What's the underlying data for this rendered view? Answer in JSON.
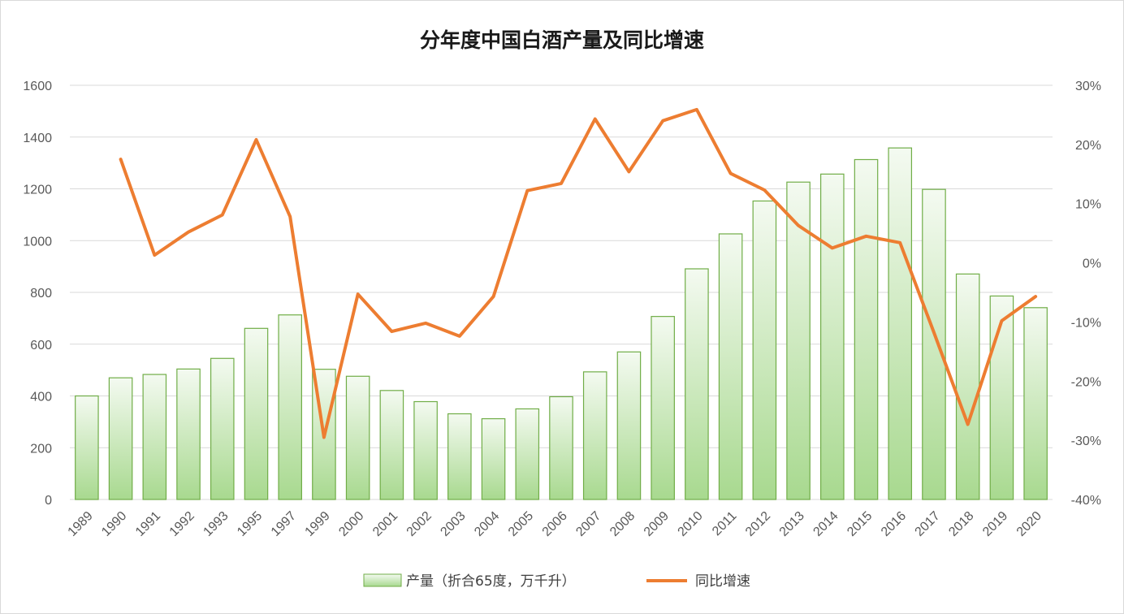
{
  "chart_data": {
    "type": "bar",
    "title": "分年度中国白酒产量及同比增速",
    "categories": [
      "1989",
      "1990",
      "1991",
      "1992",
      "1993",
      "1995",
      "1997",
      "1999",
      "2000",
      "2001",
      "2002",
      "2003",
      "2004",
      "2005",
      "2006",
      "2007",
      "2008",
      "2009",
      "2010",
      "2011",
      "2012",
      "2013",
      "2014",
      "2015",
      "2016",
      "2017",
      "2018",
      "2019",
      "2020"
    ],
    "series": [
      {
        "name": "产量（折合65度，万千升）",
        "type": "bar",
        "axis": "left",
        "values": [
          400,
          470,
          483,
          504,
          545,
          661,
          713,
          503,
          476,
          421,
          378,
          331,
          312,
          350,
          397,
          493,
          570,
          707,
          891,
          1026,
          1153,
          1226,
          1257,
          1313,
          1358,
          1198,
          871,
          786,
          741
        ]
      },
      {
        "name": "同比增速",
        "type": "line",
        "axis": "right",
        "values": [
          null,
          17.5,
          1.3,
          5.2,
          8.1,
          20.8,
          7.8,
          -29.5,
          -5.3,
          -11.6,
          -10.2,
          -12.4,
          -5.7,
          12.2,
          13.4,
          24.3,
          15.4,
          24.0,
          25.9,
          15.1,
          12.3,
          6.3,
          2.5,
          4.5,
          3.4,
          -11.8,
          -27.3,
          -9.8,
          -5.7
        ]
      }
    ],
    "left_axis": {
      "ticks": [
        "0",
        "200",
        "400",
        "600",
        "800",
        "1000",
        "1200",
        "1400",
        "1600"
      ],
      "ylim": [
        0,
        1600
      ]
    },
    "right_axis": {
      "ticks": [
        "-40%",
        "-30%",
        "-20%",
        "-10%",
        "0%",
        "10%",
        "20%",
        "30%"
      ],
      "ylim": [
        -40,
        30
      ]
    },
    "grid": true,
    "legend_position": "bottom",
    "colors": {
      "bar_fill_top": "#f4faf1",
      "bar_fill_bottom": "#a8d98f",
      "bar_stroke": "#70ad47",
      "line": "#ed7d31",
      "grid": "#d9d9d9"
    }
  }
}
